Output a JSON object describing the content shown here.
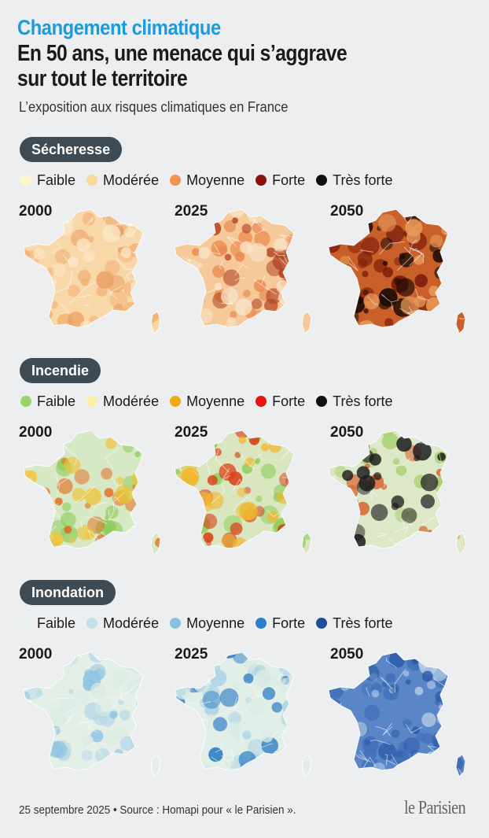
{
  "header": {
    "kicker": "Changement climatique",
    "title": "En 50 ans, une menace qui s’aggrave sur tout le territoire",
    "subtitle": "L’exposition aux risques climatiques en France"
  },
  "years": [
    "2000",
    "2025",
    "2050"
  ],
  "sections": [
    {
      "name": "Sécheresse",
      "legend": [
        {
          "label": "Faible",
          "color": "#fdf6c8"
        },
        {
          "label": "Modérée",
          "color": "#fbd99a"
        },
        {
          "label": "Moyenne",
          "color": "#f2944d"
        },
        {
          "label": "Forte",
          "color": "#8c1111"
        },
        {
          "label": "Très forte",
          "color": "#0f0f0f"
        }
      ],
      "maps": [
        {
          "year": "2000",
          "base": "#f8d8a8",
          "blobs": [
            [
              "#f2b27a",
              0.55
            ],
            [
              "#e9a066",
              0.3
            ],
            [
              "#fbe7c6",
              0.5
            ]
          ]
        },
        {
          "year": "2025",
          "base": "#f6c99a",
          "blobs": [
            [
              "#e98a4f",
              0.6
            ],
            [
              "#b2401f",
              0.45
            ],
            [
              "#f9e4c8",
              0.4
            ]
          ]
        },
        {
          "year": "2050",
          "base": "#c9602a",
          "blobs": [
            [
              "#7a1a0a",
              0.7
            ],
            [
              "#1a0a05",
              0.6
            ],
            [
              "#e89a5a",
              0.4
            ]
          ]
        }
      ]
    },
    {
      "name": "Incendie",
      "legend": [
        {
          "label": "Faible",
          "color": "#9bd36a"
        },
        {
          "label": "Modérée",
          "color": "#faf1a6"
        },
        {
          "label": "Moyenne",
          "color": "#f2a812"
        },
        {
          "label": "Forte",
          "color": "#e8120e"
        },
        {
          "label": "Très forte",
          "color": "#0f0f0f"
        }
      ],
      "maps": [
        {
          "year": "2000",
          "base": "#d7e8c4",
          "blobs": [
            [
              "#8ccc5a",
              0.6
            ],
            [
              "#e46a1e",
              0.4
            ],
            [
              "#f0c33a",
              0.4
            ]
          ]
        },
        {
          "year": "2025",
          "base": "#d9e6c0",
          "blobs": [
            [
              "#8ccc5a",
              0.55
            ],
            [
              "#d9421a",
              0.5
            ],
            [
              "#f0b830",
              0.45
            ]
          ]
        },
        {
          "year": "2050",
          "base": "#dde8c8",
          "blobs": [
            [
              "#a8d070",
              0.5
            ],
            [
              "#d86a3a",
              0.45
            ],
            [
              "#1a1a1a",
              0.5
            ]
          ]
        }
      ]
    },
    {
      "name": "Inondation",
      "legend": [
        {
          "label": "Faible",
          "color": "#e6f1ec"
        },
        {
          "label": "Modérée",
          "color": "#c3dfe8"
        },
        {
          "label": "Moyenne",
          "color": "#86c1e0"
        },
        {
          "label": "Forte",
          "color": "#2a7fc8"
        },
        {
          "label": "Très forte",
          "color": "#1d4e9c"
        }
      ],
      "maps": [
        {
          "year": "2000",
          "base": "#e4efe8",
          "blobs": [
            [
              "#b7d8e6",
              0.5
            ],
            [
              "#8ec4e0",
              0.35
            ],
            [
              "#d8ebe4",
              0.5
            ]
          ]
        },
        {
          "year": "2025",
          "base": "#e2eee8",
          "blobs": [
            [
              "#a9d1e4",
              0.55
            ],
            [
              "#2f7ec4",
              0.4
            ],
            [
              "#d8ebe4",
              0.5
            ]
          ]
        },
        {
          "year": "2050",
          "base": "#5a86c8",
          "blobs": [
            [
              "#3f6fb6",
              0.6
            ],
            [
              "#b8cfe6",
              0.5
            ],
            [
              "#2c5ca8",
              0.5
            ]
          ]
        }
      ]
    }
  ],
  "footer": {
    "source": "25 septembre 2025 • Source : Homapi pour « le Parisien ».",
    "logo": "le Parisien"
  }
}
